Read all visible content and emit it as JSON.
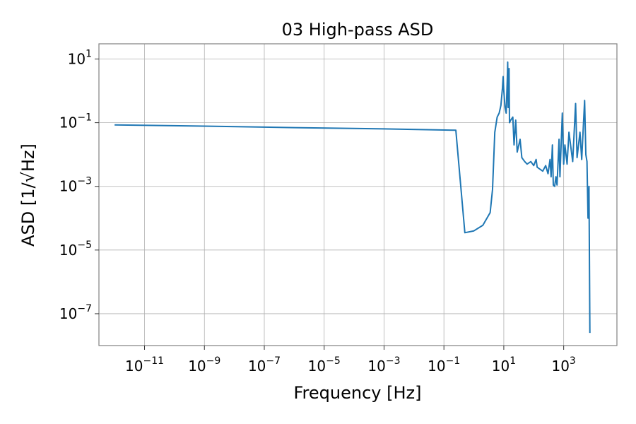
{
  "chart_data": {
    "type": "line",
    "title": "03 High-pass ASD",
    "xlabel": "Frequency [Hz]",
    "ylabel": "ASD [1/√Hz]",
    "x_scale": "log",
    "y_scale": "log",
    "xlim": [
      3e-13,
      60000
    ],
    "ylim": [
      1e-08,
      30
    ],
    "grid": true,
    "x_ticks": [
      {
        "base": "10",
        "exp": "−11",
        "value": 1e-11
      },
      {
        "base": "10",
        "exp": "−9",
        "value": 1e-09
      },
      {
        "base": "10",
        "exp": "−7",
        "value": 1e-07
      },
      {
        "base": "10",
        "exp": "−5",
        "value": 1e-05
      },
      {
        "base": "10",
        "exp": "−3",
        "value": 0.001
      },
      {
        "base": "10",
        "exp": "−1",
        "value": 0.1
      },
      {
        "base": "10",
        "exp": "1",
        "value": 10
      },
      {
        "base": "10",
        "exp": "3",
        "value": 1000
      }
    ],
    "y_ticks": [
      {
        "base": "10",
        "exp": "1",
        "value": 10
      },
      {
        "base": "10",
        "exp": "−1",
        "value": 0.1
      },
      {
        "base": "10",
        "exp": "−3",
        "value": 0.001
      },
      {
        "base": "10",
        "exp": "−5",
        "value": 1e-05
      },
      {
        "base": "10",
        "exp": "−7",
        "value": 1e-07
      }
    ],
    "series": [
      {
        "color": "#1f77b4",
        "points": [
          [
            1e-12,
            0.085
          ],
          [
            1e-09,
            0.078
          ],
          [
            1e-06,
            0.07
          ],
          [
            0.001,
            0.064
          ],
          [
            0.25,
            0.058
          ],
          [
            0.5,
            3.5e-05
          ],
          [
            1.0,
            4e-05
          ],
          [
            2.0,
            6e-05
          ],
          [
            3.5,
            0.00015
          ],
          [
            4.2,
            0.0008
          ],
          [
            5.0,
            0.05
          ],
          [
            6.0,
            0.15
          ],
          [
            7.0,
            0.2
          ],
          [
            8.0,
            0.35
          ],
          [
            9.0,
            1.2
          ],
          [
            9.5,
            2.8
          ],
          [
            10.0,
            1.0
          ],
          [
            11.0,
            0.3
          ],
          [
            12.0,
            0.2
          ],
          [
            13.0,
            2.0
          ],
          [
            13.5,
            8.0
          ],
          [
            14.0,
            0.3
          ],
          [
            15.0,
            5.0
          ],
          [
            15.5,
            0.1
          ],
          [
            17.0,
            0.12
          ],
          [
            20.0,
            0.15
          ],
          [
            22.0,
            0.02
          ],
          [
            25.0,
            0.12
          ],
          [
            28.0,
            0.012
          ],
          [
            35.0,
            0.03
          ],
          [
            40.0,
            0.008
          ],
          [
            50.0,
            0.006
          ],
          [
            60.0,
            0.005
          ],
          [
            80.0,
            0.006
          ],
          [
            100.0,
            0.0045
          ],
          [
            120.0,
            0.007
          ],
          [
            130.0,
            0.004
          ],
          [
            200.0,
            0.003
          ],
          [
            250.0,
            0.0045
          ],
          [
            300.0,
            0.0025
          ],
          [
            350.0,
            0.007
          ],
          [
            380.0,
            0.002
          ],
          [
            420.0,
            0.02
          ],
          [
            450.0,
            0.0011
          ],
          [
            500.0,
            0.001
          ],
          [
            550.0,
            0.002
          ],
          [
            600.0,
            0.0011
          ],
          [
            700.0,
            0.03
          ],
          [
            750.0,
            0.002
          ],
          [
            900.0,
            0.2
          ],
          [
            1000.0,
            0.005
          ],
          [
            1100.0,
            0.02
          ],
          [
            1300.0,
            0.005
          ],
          [
            1500.0,
            0.05
          ],
          [
            2000.0,
            0.006
          ],
          [
            2500.0,
            0.4
          ],
          [
            2800.0,
            0.008
          ],
          [
            3500.0,
            0.05
          ],
          [
            4000.0,
            0.007
          ],
          [
            5000.0,
            0.5
          ],
          [
            5500.0,
            0.01
          ],
          [
            6000.0,
            0.006
          ],
          [
            6500.0,
            0.0001
          ],
          [
            7000.0,
            0.001
          ],
          [
            7500.0,
            2.5e-08
          ]
        ]
      }
    ]
  }
}
